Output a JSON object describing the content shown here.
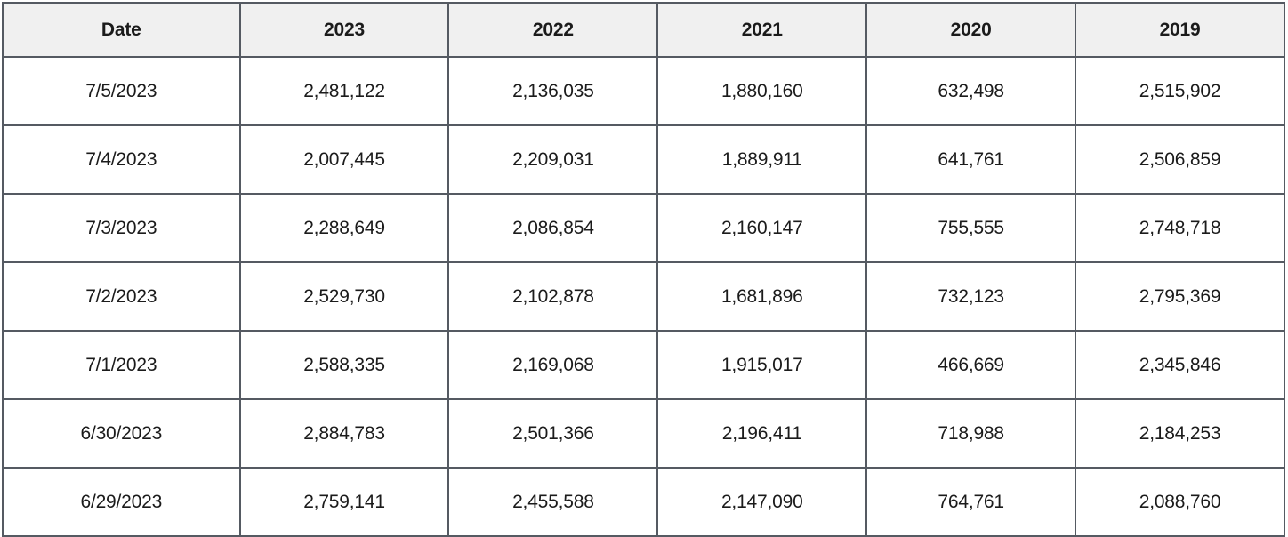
{
  "table": {
    "columns": [
      "Date",
      "2023",
      "2022",
      "2021",
      "2020",
      "2019"
    ],
    "rows": [
      [
        "7/5/2023",
        "2,481,122",
        "2,136,035",
        "1,880,160",
        "632,498",
        "2,515,902"
      ],
      [
        "7/4/2023",
        "2,007,445",
        "2,209,031",
        "1,889,911",
        "641,761",
        "2,506,859"
      ],
      [
        "7/3/2023",
        "2,288,649",
        "2,086,854",
        "2,160,147",
        "755,555",
        "2,748,718"
      ],
      [
        "7/2/2023",
        "2,529,730",
        "2,102,878",
        "1,681,896",
        "732,123",
        "2,795,369"
      ],
      [
        "7/1/2023",
        "2,588,335",
        "2,169,068",
        "1,915,017",
        "466,669",
        "2,345,846"
      ],
      [
        "6/30/2023",
        "2,884,783",
        "2,501,366",
        "2,196,411",
        "718,988",
        "2,184,253"
      ],
      [
        "6/29/2023",
        "2,759,141",
        "2,455,588",
        "2,147,090",
        "764,761",
        "2,088,760"
      ]
    ]
  },
  "chart_data": {
    "type": "table",
    "columns": [
      "Date",
      "2023",
      "2022",
      "2021",
      "2020",
      "2019"
    ],
    "rows": [
      {
        "date": "7/5/2023",
        "2023": 2481122,
        "2022": 2136035,
        "2021": 1880160,
        "2020": 632498,
        "2019": 2515902
      },
      {
        "date": "7/4/2023",
        "2023": 2007445,
        "2022": 2209031,
        "2021": 1889911,
        "2020": 641761,
        "2019": 2506859
      },
      {
        "date": "7/3/2023",
        "2023": 2288649,
        "2022": 2086854,
        "2021": 2160147,
        "2020": 755555,
        "2019": 2748718
      },
      {
        "date": "7/2/2023",
        "2023": 2529730,
        "2022": 2102878,
        "2021": 1681896,
        "2020": 732123,
        "2019": 2795369
      },
      {
        "date": "7/1/2023",
        "2023": 2588335,
        "2022": 2169068,
        "2021": 1915017,
        "2020": 466669,
        "2019": 2345846
      },
      {
        "date": "6/30/2023",
        "2023": 2884783,
        "2022": 2501366,
        "2021": 2196411,
        "2020": 718988,
        "2019": 2184253
      },
      {
        "date": "6/29/2023",
        "2023": 2759141,
        "2022": 2455588,
        "2021": 2147090,
        "2020": 764761,
        "2019": 2088760
      }
    ]
  },
  "colors": {
    "border": "#555a62",
    "header_bg": "#f0f0f0",
    "row_bg": "#ffffff",
    "text": "#1b1b1b"
  }
}
